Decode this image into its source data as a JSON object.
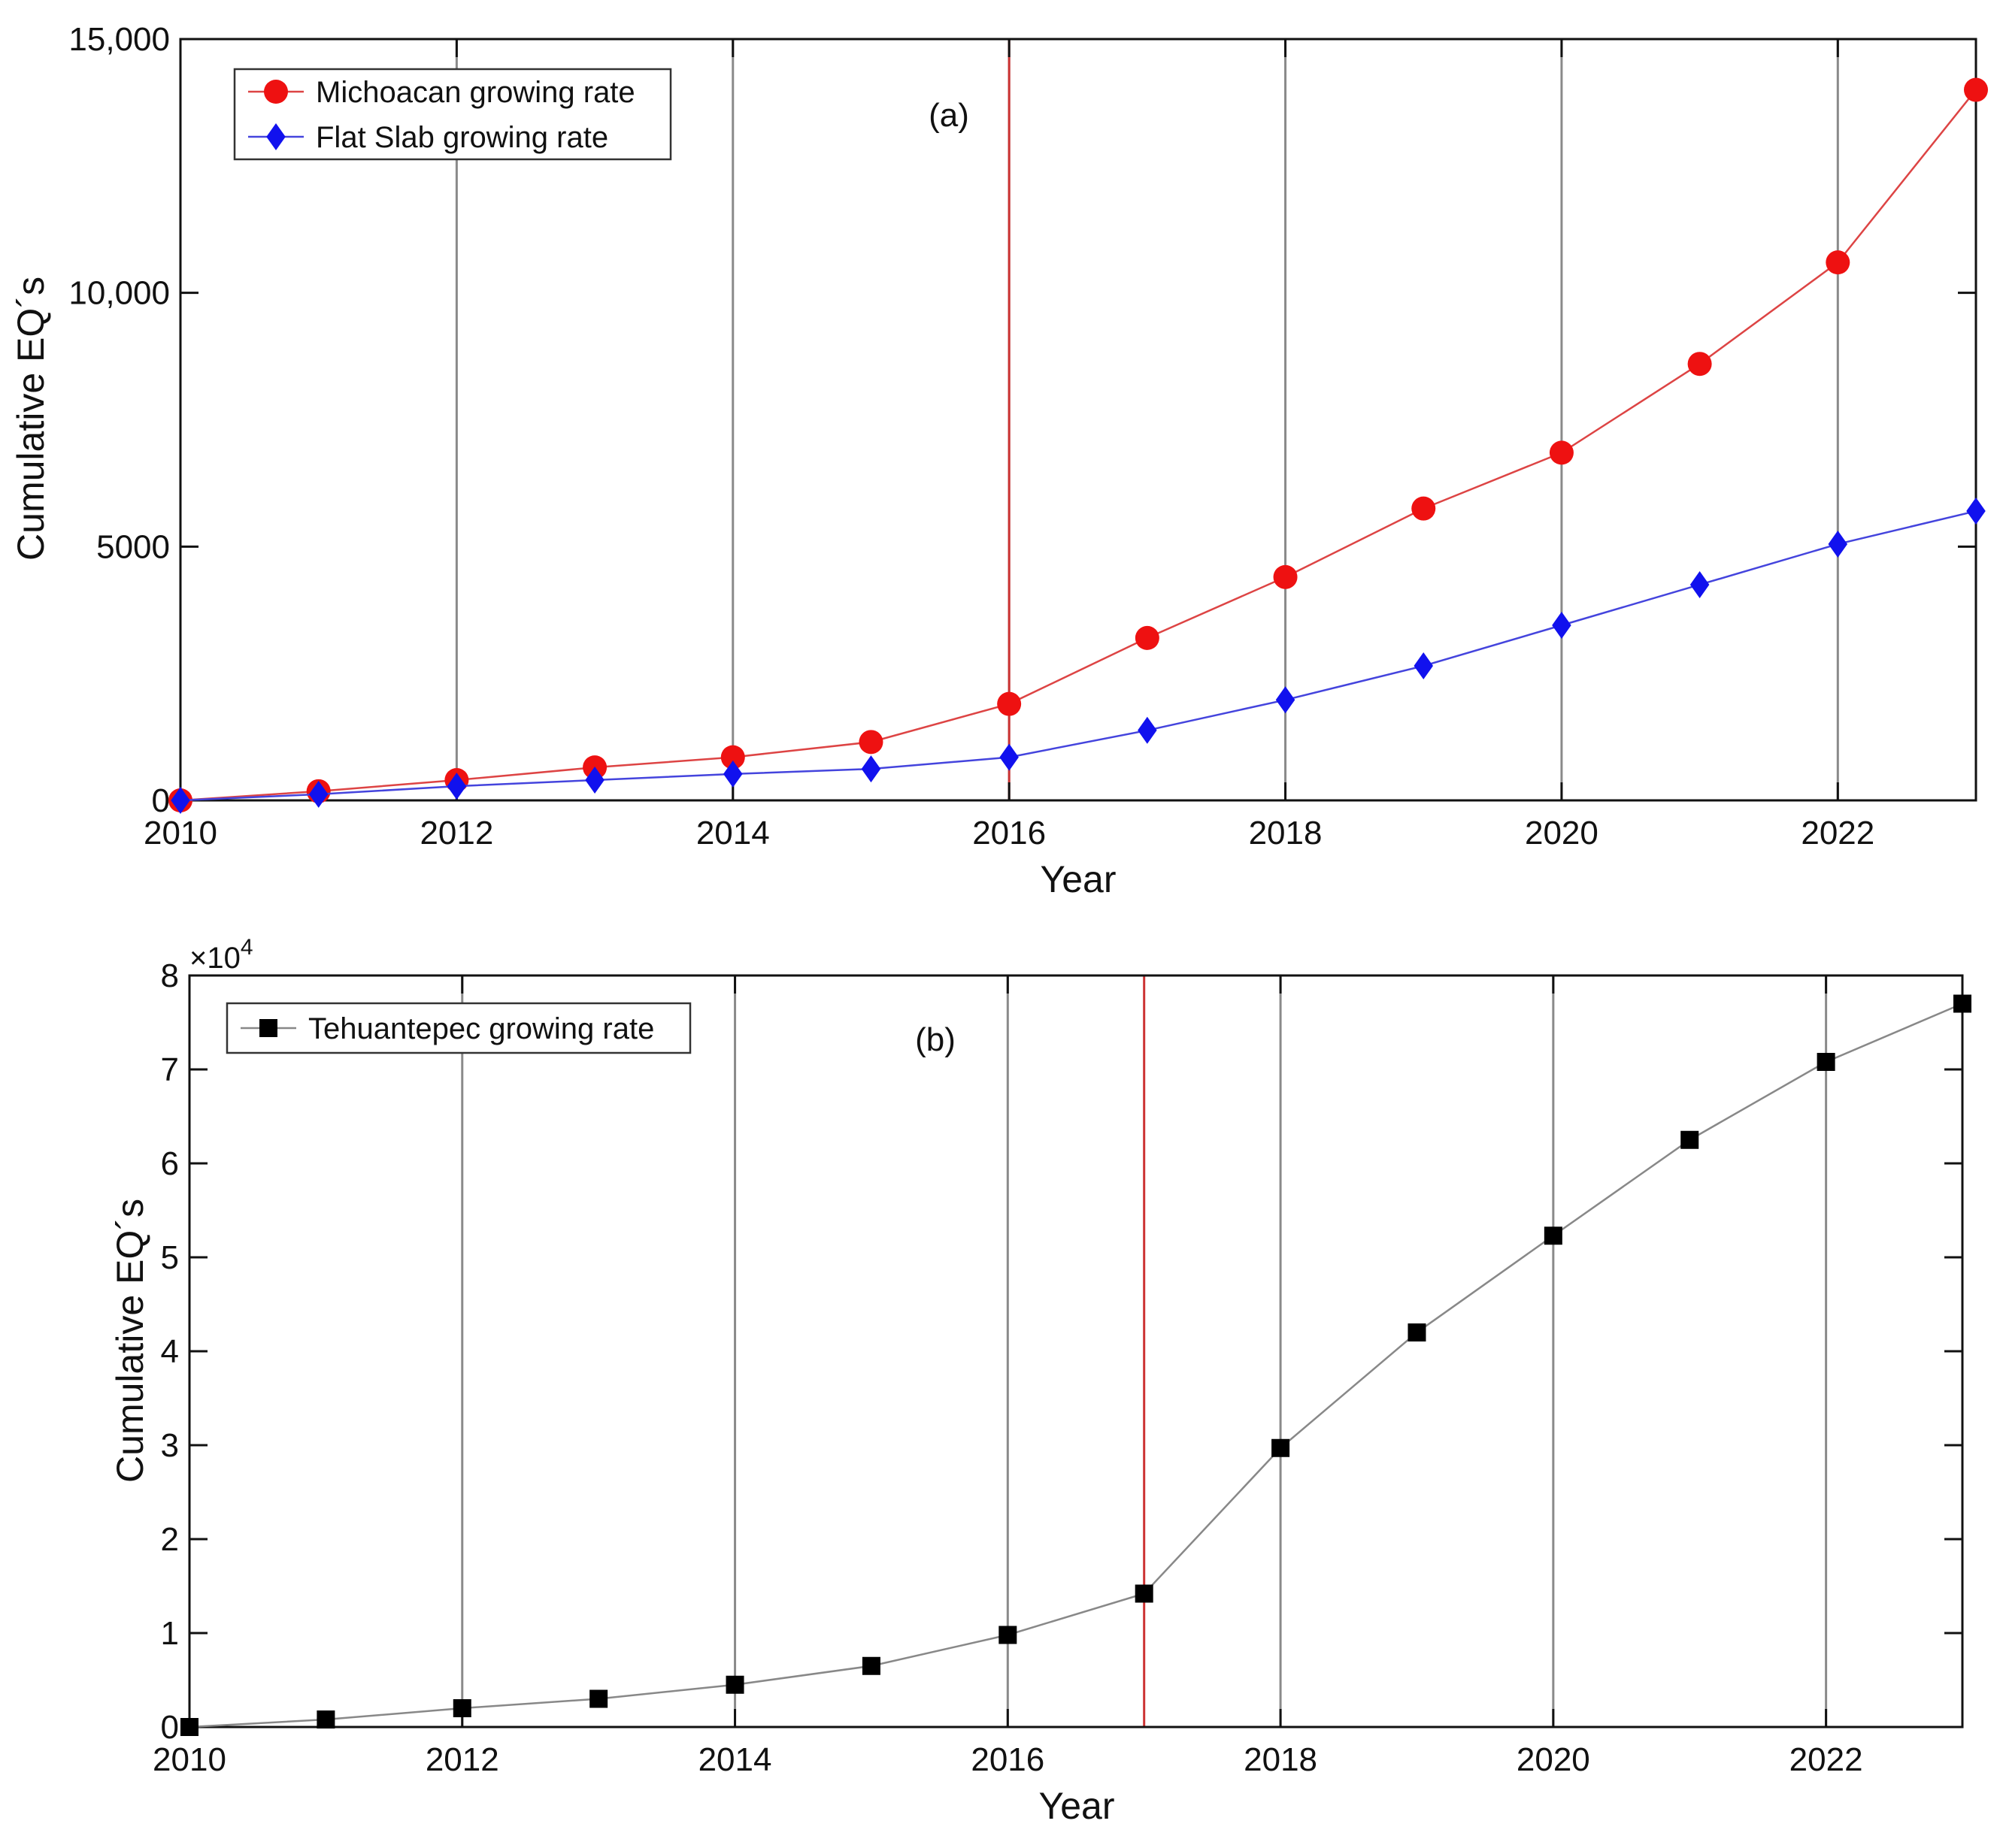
{
  "chart_data": [
    {
      "type": "line",
      "panel_label": "(a)",
      "xlabel": "Year",
      "ylabel": "Cumulative EQ´s",
      "xlim": [
        2010,
        2023
      ],
      "ylim": [
        0,
        15000
      ],
      "xticks": [
        2010,
        2012,
        2014,
        2016,
        2018,
        2020,
        2022
      ],
      "xtick_labels": [
        "2010",
        "2012",
        "2014",
        "2016",
        "2018",
        "2020",
        "2022"
      ],
      "yticks": [
        0,
        5000,
        10000,
        15000
      ],
      "ytick_labels": [
        "0",
        "5000",
        "10,000",
        "15,000"
      ],
      "grid": "vertical lines at even years",
      "highlight_year": 2016,
      "highlight_color": "#cc3333",
      "legend_position": "top-left",
      "series": [
        {
          "name": "Michoacan growing rate",
          "marker": "circle",
          "color": "#ee1111",
          "line_color": "#dd4444",
          "x": [
            2010,
            2011,
            2012,
            2013,
            2014,
            2015,
            2016,
            2017,
            2018,
            2019,
            2020,
            2021,
            2022,
            2023
          ],
          "values": [
            0,
            180,
            400,
            650,
            850,
            1150,
            1900,
            3200,
            4400,
            5750,
            6850,
            8600,
            10600,
            14000
          ]
        },
        {
          "name": "Flat Slab growing rate",
          "marker": "diamond",
          "color": "#1111ee",
          "line_color": "#4444dd",
          "x": [
            2010,
            2011,
            2012,
            2013,
            2014,
            2015,
            2016,
            2017,
            2018,
            2019,
            2020,
            2021,
            2022,
            2023
          ],
          "values": [
            0,
            120,
            280,
            400,
            520,
            620,
            850,
            1380,
            1980,
            2650,
            3450,
            4250,
            5050,
            5700
          ]
        }
      ]
    },
    {
      "type": "line",
      "panel_label": "(b)",
      "xlabel": "Year",
      "ylabel": "Cumulative EQ´s",
      "y_exponent_base": "×10",
      "y_exponent_power": "4",
      "xlim": [
        2010,
        2023
      ],
      "ylim": [
        0,
        8
      ],
      "xticks": [
        2010,
        2012,
        2014,
        2016,
        2018,
        2020,
        2022
      ],
      "xtick_labels": [
        "2010",
        "2012",
        "2014",
        "2016",
        "2018",
        "2020",
        "2022"
      ],
      "yticks": [
        0,
        1,
        2,
        3,
        4,
        5,
        6,
        7,
        8
      ],
      "ytick_labels": [
        "0",
        "1",
        "2",
        "3",
        "4",
        "5",
        "6",
        "7",
        "8"
      ],
      "grid": "vertical lines at even years",
      "highlight_year": 2017,
      "highlight_color": "#cc3333",
      "legend_position": "top-left",
      "series": [
        {
          "name": "Tehuantepec growing rate",
          "marker": "square",
          "color": "#000000",
          "line_color": "#888888",
          "x": [
            2010,
            2011,
            2012,
            2013,
            2014,
            2015,
            2016,
            2017,
            2018,
            2019,
            2020,
            2021,
            2022,
            2023
          ],
          "values": [
            0,
            0.08,
            0.2,
            0.3,
            0.45,
            0.65,
            0.98,
            1.42,
            2.97,
            4.2,
            5.23,
            6.25,
            7.08,
            7.7
          ]
        }
      ]
    }
  ]
}
